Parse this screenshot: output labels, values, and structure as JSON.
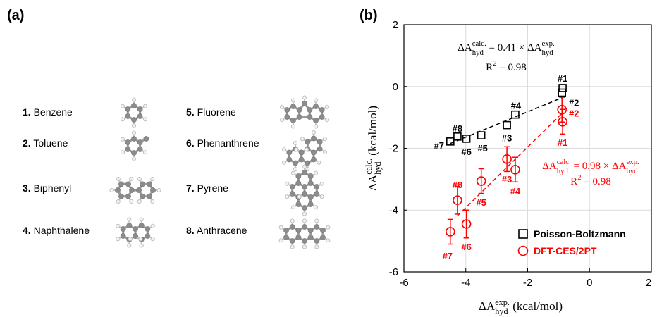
{
  "panel_a": {
    "label": "(a)",
    "molecules": [
      {
        "number": "1.",
        "name": "Benzene"
      },
      {
        "number": "2.",
        "name": "Toluene"
      },
      {
        "number": "3.",
        "name": "Biphenyl"
      },
      {
        "number": "4.",
        "name": "Naphthalene"
      },
      {
        "number": "5.",
        "name": "Fluorene"
      },
      {
        "number": "6.",
        "name": "Phenanthrene"
      },
      {
        "number": "7.",
        "name": "Pyrene"
      },
      {
        "number": "8.",
        "name": "Anthracene"
      }
    ]
  },
  "chart_data": {
    "type": "scatter",
    "panel_label": "(b)",
    "x_label": [
      {
        "text": "ΔA"
      },
      {
        "sup": "exp.",
        "sub": "hyd"
      },
      {
        "text": " (kcal/mol)"
      }
    ],
    "y_label": [
      {
        "text": "ΔA"
      },
      {
        "sup": "calc.",
        "sub": "hyd"
      },
      {
        "text": " (kcal/mol)"
      }
    ],
    "xlim": [
      -6,
      2
    ],
    "ylim": [
      -6,
      2
    ],
    "xticks": [
      -6,
      -4,
      -2,
      0,
      2
    ],
    "yticks": [
      -6,
      -4,
      -2,
      0,
      2
    ],
    "grid": true,
    "legend": "lower right",
    "series": [
      {
        "name": "Poisson-Boltzmann",
        "color": "#000000",
        "marker": "square",
        "x": [
          -0.87,
          -0.89,
          -2.67,
          -2.4,
          -3.5,
          -3.98,
          -4.5,
          -4.27
        ],
        "values": [
          -0.05,
          -0.2,
          -1.25,
          -0.91,
          -1.58,
          -1.69,
          -1.78,
          -1.62
        ],
        "point_labels": [
          "#1",
          "#2",
          "#3",
          "#4",
          "#5",
          "#6",
          "#7",
          "#8"
        ],
        "fit": {
          "slope": 0.41,
          "x": [
            -4.5,
            -0.87
          ]
        },
        "annotation": [
          [
            {
              "text": "ΔA"
            },
            {
              "sup": "calc.",
              "sub": "hyd"
            },
            {
              "text": " = 0.41 × ΔA"
            },
            {
              "sup": "exp.",
              "sub": "hyd"
            }
          ],
          [
            {
              "text": "R"
            },
            {
              "sup": "2"
            },
            {
              "text": " = 0.98"
            }
          ]
        ]
      },
      {
        "name": "DFT-CES/2PT",
        "color": "#ff0000",
        "marker": "circle",
        "x": [
          -0.87,
          -0.89,
          -2.67,
          -2.4,
          -3.5,
          -3.98,
          -4.5,
          -4.27
        ],
        "values": [
          -1.14,
          -0.75,
          -2.35,
          -2.69,
          -3.06,
          -4.45,
          -4.7,
          -3.68
        ],
        "errors": [
          0.4,
          0.4,
          0.4,
          0.4,
          0.4,
          0.45,
          0.4,
          0.45
        ],
        "point_labels": [
          "#1",
          "#2",
          "#3",
          "#4",
          "#5",
          "#6",
          "#7",
          "#8"
        ],
        "fit": {
          "slope": 0.98,
          "x": [
            -4.27,
            -0.87
          ]
        },
        "annotation": [
          [
            {
              "text": "ΔA"
            },
            {
              "sup": "calc.",
              "sub": "hyd"
            },
            {
              "text": " = 0.98 × ΔA"
            },
            {
              "sup": "exp.",
              "sub": "hyd"
            }
          ],
          [
            {
              "text": "R"
            },
            {
              "sup": "2"
            },
            {
              "text": " = 0.98"
            }
          ]
        ]
      }
    ]
  }
}
